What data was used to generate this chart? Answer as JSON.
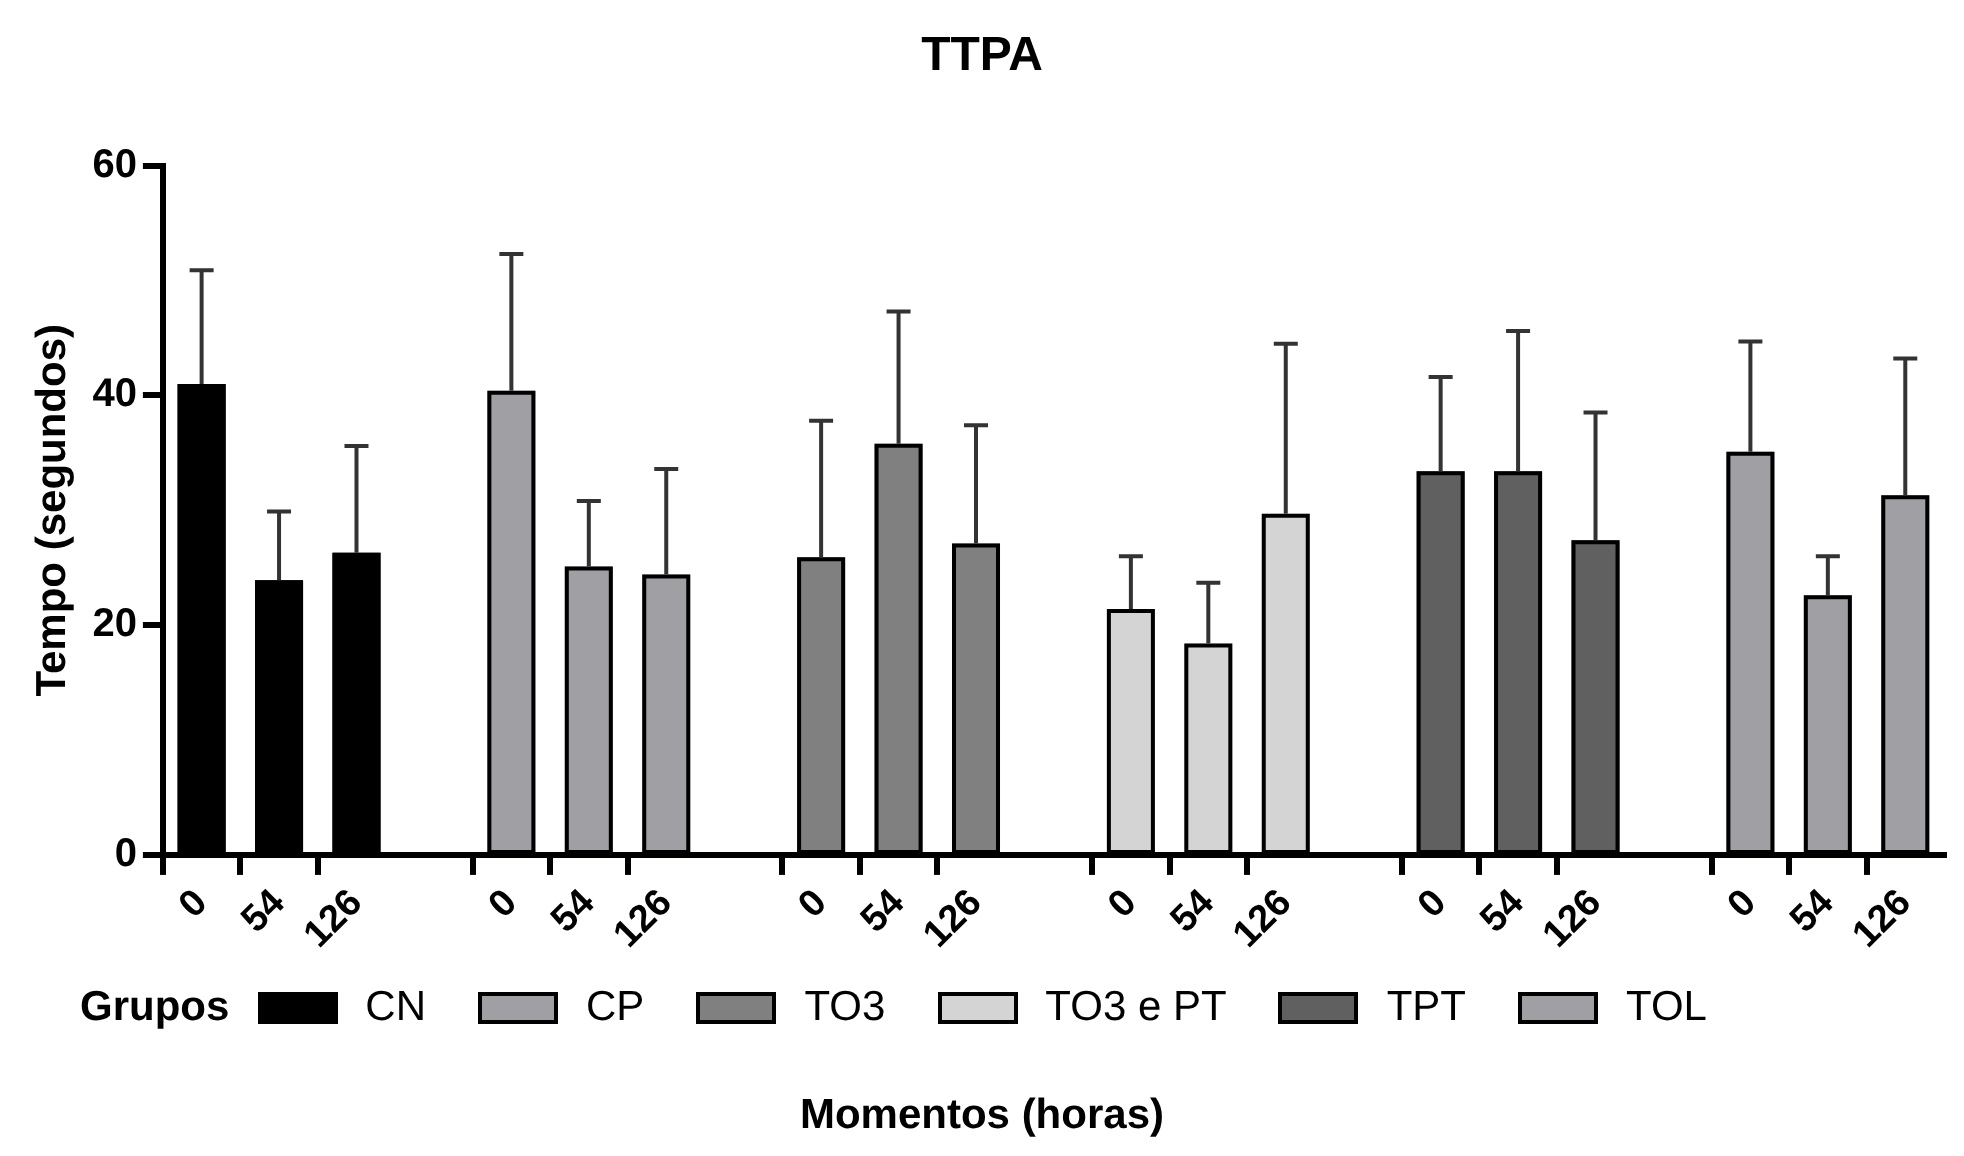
{
  "chart_data": {
    "type": "bar",
    "title": "TTPA",
    "xlabel": "Momentos (horas)",
    "ylabel": "Tempo (segundos)",
    "legend_title": "Grupos",
    "categories": [
      "0",
      "54",
      "126",
      null,
      "0",
      "54",
      "126",
      null,
      "0",
      "54",
      "126",
      null,
      "0",
      "54",
      "126",
      null,
      "0",
      "54",
      "126",
      null,
      "0",
      "54",
      "126"
    ],
    "series": [
      {
        "name": "CN",
        "color": "#000000",
        "values": [
          41.0,
          23.9,
          26.3,
          null,
          null,
          null,
          null,
          null,
          null,
          null,
          null,
          null,
          null,
          null,
          null,
          null,
          null,
          null,
          null,
          null,
          null,
          null,
          null
        ],
        "errors": [
          [
            41.0,
            50.9
          ],
          [
            23.9,
            29.9
          ],
          [
            26.3,
            35.6
          ],
          null,
          null,
          null,
          null,
          null,
          null,
          null,
          null,
          null,
          null,
          null,
          null,
          null,
          null,
          null,
          null,
          null,
          null,
          null,
          null
        ]
      },
      {
        "name": "CP",
        "color": "#a0a0a4",
        "values": [
          null,
          null,
          null,
          null,
          40.4,
          25.1,
          24.4,
          null,
          null,
          null,
          null,
          null,
          null,
          null,
          null,
          null,
          null,
          null,
          null,
          null,
          null,
          null,
          null
        ],
        "errors": [
          null,
          null,
          null,
          null,
          [
            40.4,
            52.3
          ],
          [
            25.1,
            30.8
          ],
          [
            24.4,
            33.6
          ],
          null,
          null,
          null,
          null,
          null,
          null,
          null,
          null,
          null,
          null,
          null,
          null,
          null,
          null,
          null,
          null
        ]
      },
      {
        "name": "TO3",
        "color": "#808080",
        "values": [
          null,
          null,
          null,
          null,
          null,
          null,
          null,
          null,
          25.9,
          35.8,
          27.1,
          null,
          null,
          null,
          null,
          null,
          null,
          null,
          null,
          null,
          null,
          null,
          null
        ],
        "errors": [
          null,
          null,
          null,
          null,
          null,
          null,
          null,
          null,
          [
            25.9,
            37.8
          ],
          [
            35.8,
            47.3
          ],
          [
            27.1,
            37.4
          ],
          null,
          null,
          null,
          null,
          null,
          null,
          null,
          null,
          null,
          null,
          null,
          null
        ]
      },
      {
        "name": "TO3 e PT",
        "color": "#d4d4d4",
        "values": [
          null,
          null,
          null,
          null,
          null,
          null,
          null,
          null,
          null,
          null,
          null,
          null,
          21.4,
          18.4,
          29.7,
          null,
          null,
          null,
          null,
          null,
          null,
          null,
          null
        ],
        "errors": [
          null,
          null,
          null,
          null,
          null,
          null,
          null,
          null,
          null,
          null,
          null,
          null,
          [
            21.4,
            26.0
          ],
          [
            18.4,
            23.7
          ],
          [
            29.7,
            44.5
          ],
          null,
          null,
          null,
          null,
          null,
          null,
          null,
          null
        ]
      },
      {
        "name": "TPT",
        "color": "#606060",
        "values": [
          null,
          null,
          null,
          null,
          null,
          null,
          null,
          null,
          null,
          null,
          null,
          null,
          null,
          null,
          null,
          null,
          33.4,
          33.4,
          27.4,
          null,
          null,
          null,
          null
        ],
        "errors": [
          null,
          null,
          null,
          null,
          null,
          null,
          null,
          null,
          null,
          null,
          null,
          null,
          null,
          null,
          null,
          null,
          [
            33.4,
            41.6
          ],
          [
            33.4,
            45.6
          ],
          [
            27.4,
            38.5
          ],
          null,
          null,
          null,
          null
        ]
      },
      {
        "name": "TOL",
        "color": "#a0a0a4",
        "values": [
          null,
          null,
          null,
          null,
          null,
          null,
          null,
          null,
          null,
          null,
          null,
          null,
          null,
          null,
          null,
          null,
          null,
          null,
          null,
          null,
          35.1,
          22.6,
          31.3
        ],
        "errors": [
          null,
          null,
          null,
          null,
          null,
          null,
          null,
          null,
          null,
          null,
          null,
          null,
          null,
          null,
          null,
          null,
          null,
          null,
          null,
          null,
          [
            35.1,
            44.7
          ],
          [
            22.6,
            26.0
          ],
          [
            31.3,
            43.2
          ]
        ]
      }
    ],
    "ylim": [
      0,
      60
    ],
    "yticks": [
      0,
      20,
      40,
      60
    ],
    "grid": false,
    "legend": "bottom"
  }
}
